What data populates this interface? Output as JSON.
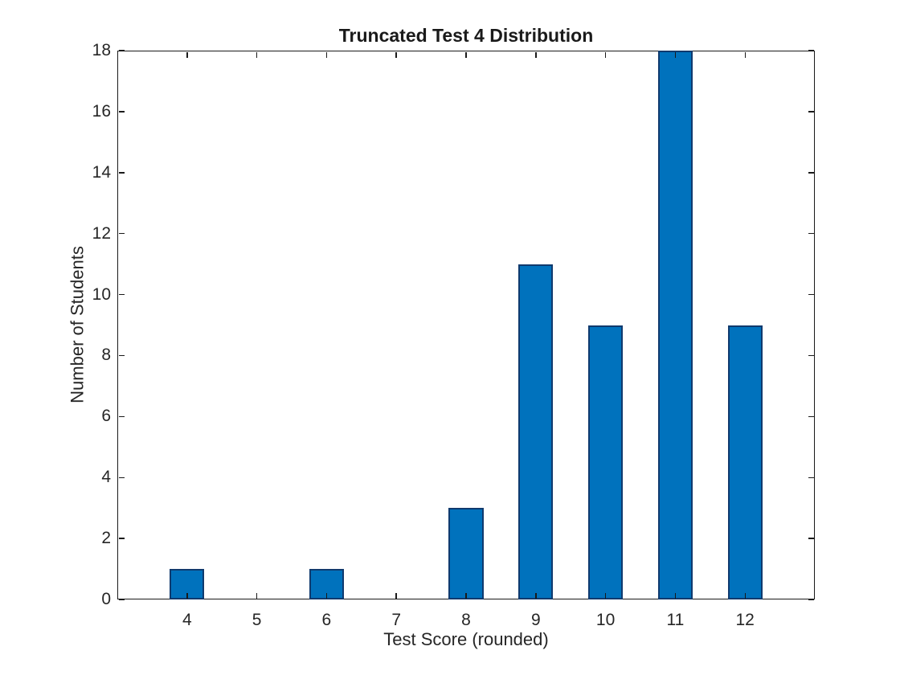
{
  "figure": {
    "background_color": "#ffffff"
  },
  "chart_data": {
    "type": "bar",
    "title": "Truncated Test 4 Distribution",
    "xlabel": "Test Score (rounded)",
    "ylabel": "Number of Students",
    "categories": [
      4,
      5,
      6,
      7,
      8,
      9,
      10,
      11,
      12
    ],
    "values": [
      1,
      0,
      1,
      0,
      3,
      11,
      9,
      18,
      9
    ],
    "xlim": [
      3,
      13
    ],
    "ylim": [
      0,
      18
    ],
    "x_ticks": [
      4,
      5,
      6,
      7,
      8,
      9,
      10,
      11,
      12
    ],
    "y_ticks": [
      0,
      2,
      4,
      6,
      8,
      10,
      12,
      14,
      16,
      18
    ],
    "bar_width_units": 0.5,
    "bar_color": "#0072BD",
    "bar_edge_color": "#103a6e",
    "axis_color": "#1a1a1a",
    "tick_label_color": "#262626",
    "grid": false,
    "legend": null
  }
}
